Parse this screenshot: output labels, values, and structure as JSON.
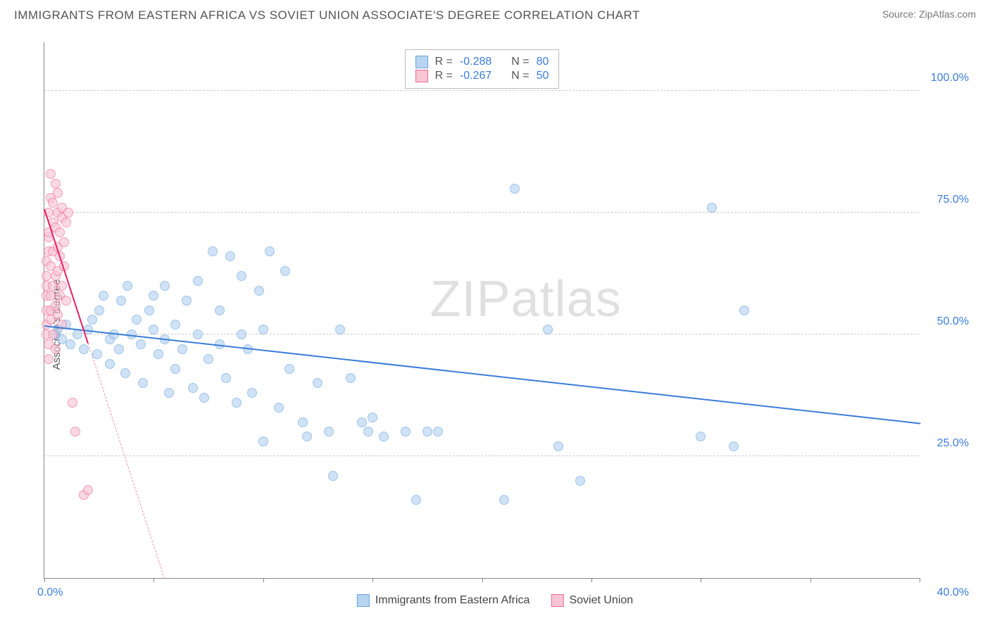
{
  "title": "IMMIGRANTS FROM EASTERN AFRICA VS SOVIET UNION ASSOCIATE'S DEGREE CORRELATION CHART",
  "source_label": "Source: ",
  "source_name": "ZipAtlas.com",
  "watermark": {
    "zip": "ZIP",
    "atlas": "atlas"
  },
  "chart": {
    "type": "scatter",
    "ylabel": "Associate's Degree",
    "xlim": [
      0,
      40
    ],
    "ylim": [
      0,
      110
    ],
    "x_ticks": [
      0,
      5,
      10,
      15,
      20,
      25,
      30,
      35,
      40
    ],
    "y_gridlines": [
      25,
      50,
      75,
      100
    ],
    "x_label_min": "0.0%",
    "x_label_max": "40.0%",
    "y_tick_labels": {
      "25": "25.0%",
      "50": "50.0%",
      "75": "75.0%",
      "100": "100.0%"
    },
    "background_color": "#ffffff",
    "grid_color": "#cccccc",
    "axis_color": "#888888",
    "tick_label_color": "#3b7dd8",
    "marker_radius": 7,
    "marker_stroke_width": 1.5,
    "series": [
      {
        "name": "Immigrants from Eastern Africa",
        "fill": "#b8d4f0",
        "stroke": "#6aa5e0",
        "fill_opacity": 0.65,
        "regression": {
          "y_at_x0": 52,
          "y_at_xmax": 32,
          "color": "#3b7dd8",
          "width": 2,
          "style": "solid"
        },
        "R": -0.288,
        "N": 80,
        "points": [
          [
            0.5,
            50
          ],
          [
            0.6,
            51
          ],
          [
            0.8,
            49
          ],
          [
            1.0,
            52
          ],
          [
            1.2,
            48
          ],
          [
            1.5,
            50
          ],
          [
            1.8,
            47
          ],
          [
            2.0,
            51
          ],
          [
            2.2,
            53
          ],
          [
            2.4,
            46
          ],
          [
            2.5,
            55
          ],
          [
            2.7,
            58
          ],
          [
            3.0,
            49
          ],
          [
            3.0,
            44
          ],
          [
            3.2,
            50
          ],
          [
            3.4,
            47
          ],
          [
            3.5,
            57
          ],
          [
            3.7,
            42
          ],
          [
            3.8,
            60
          ],
          [
            4.0,
            50
          ],
          [
            4.2,
            53
          ],
          [
            4.4,
            48
          ],
          [
            4.5,
            40
          ],
          [
            4.8,
            55
          ],
          [
            5.0,
            51
          ],
          [
            5.0,
            58
          ],
          [
            5.2,
            46
          ],
          [
            5.5,
            49
          ],
          [
            5.5,
            60
          ],
          [
            5.7,
            38
          ],
          [
            6.0,
            52
          ],
          [
            6.0,
            43
          ],
          [
            6.3,
            47
          ],
          [
            6.5,
            57
          ],
          [
            6.8,
            39
          ],
          [
            7.0,
            50
          ],
          [
            7.0,
            61
          ],
          [
            7.3,
            37
          ],
          [
            7.5,
            45
          ],
          [
            7.7,
            67
          ],
          [
            8.0,
            48
          ],
          [
            8.0,
            55
          ],
          [
            8.3,
            41
          ],
          [
            8.5,
            66
          ],
          [
            8.8,
            36
          ],
          [
            9.0,
            50
          ],
          [
            9.0,
            62
          ],
          [
            9.3,
            47
          ],
          [
            9.5,
            38
          ],
          [
            9.8,
            59
          ],
          [
            10.0,
            51
          ],
          [
            10.0,
            28
          ],
          [
            10.3,
            67
          ],
          [
            10.7,
            35
          ],
          [
            11.0,
            63
          ],
          [
            11.2,
            43
          ],
          [
            11.8,
            32
          ],
          [
            12.0,
            29
          ],
          [
            12.5,
            40
          ],
          [
            13.0,
            30
          ],
          [
            13.2,
            21
          ],
          [
            13.5,
            51
          ],
          [
            14.0,
            41
          ],
          [
            14.5,
            32
          ],
          [
            14.8,
            30
          ],
          [
            15.0,
            33
          ],
          [
            15.5,
            29
          ],
          [
            16.5,
            30
          ],
          [
            17.0,
            16
          ],
          [
            17.5,
            30
          ],
          [
            18.0,
            30
          ],
          [
            21.0,
            16
          ],
          [
            21.5,
            80
          ],
          [
            23.0,
            51
          ],
          [
            23.5,
            27
          ],
          [
            24.5,
            20
          ],
          [
            30.0,
            29
          ],
          [
            30.5,
            76
          ],
          [
            31.5,
            27
          ],
          [
            32.0,
            55
          ]
        ]
      },
      {
        "name": "Soviet Union",
        "fill": "#f8c5d5",
        "stroke": "#ec6a99",
        "fill_opacity": 0.65,
        "regression": {
          "y_at_x0": 76,
          "slope_to_zero_at_x": 5.5,
          "color": "#e91e63",
          "width": 2,
          "style": "solid_then_dash"
        },
        "R": -0.267,
        "N": 50,
        "points": [
          [
            0.1,
            55
          ],
          [
            0.1,
            58
          ],
          [
            0.1,
            60
          ],
          [
            0.1,
            62
          ],
          [
            0.1,
            50
          ],
          [
            0.1,
            52
          ],
          [
            0.1,
            65
          ],
          [
            0.2,
            70
          ],
          [
            0.2,
            45
          ],
          [
            0.2,
            75
          ],
          [
            0.2,
            48
          ],
          [
            0.2,
            67
          ],
          [
            0.2,
            71
          ],
          [
            0.3,
            55
          ],
          [
            0.3,
            78
          ],
          [
            0.3,
            58
          ],
          [
            0.3,
            83
          ],
          [
            0.3,
            53
          ],
          [
            0.3,
            64
          ],
          [
            0.4,
            73
          ],
          [
            0.4,
            60
          ],
          [
            0.4,
            50
          ],
          [
            0.4,
            77
          ],
          [
            0.4,
            67
          ],
          [
            0.5,
            62
          ],
          [
            0.5,
            81
          ],
          [
            0.5,
            56
          ],
          [
            0.5,
            72
          ],
          [
            0.5,
            47
          ],
          [
            0.6,
            68
          ],
          [
            0.6,
            75
          ],
          [
            0.6,
            54
          ],
          [
            0.6,
            79
          ],
          [
            0.6,
            63
          ],
          [
            0.7,
            58
          ],
          [
            0.7,
            66
          ],
          [
            0.7,
            71
          ],
          [
            0.8,
            74
          ],
          [
            0.8,
            60
          ],
          [
            0.8,
            76
          ],
          [
            0.8,
            52
          ],
          [
            0.9,
            64
          ],
          [
            0.9,
            69
          ],
          [
            1.0,
            73
          ],
          [
            1.0,
            57
          ],
          [
            1.1,
            75
          ],
          [
            1.3,
            36
          ],
          [
            1.4,
            30
          ],
          [
            1.8,
            17
          ],
          [
            2.0,
            18
          ]
        ]
      }
    ],
    "legend_top": {
      "rows": [
        {
          "sw_fill": "#b8d4f0",
          "sw_stroke": "#6aa5e0",
          "r_label": "R =",
          "r_value": "-0.288",
          "n_label": "N =",
          "n_value": "80"
        },
        {
          "sw_fill": "#f8c5d5",
          "sw_stroke": "#ec6a99",
          "r_label": "R =",
          "r_value": "-0.267",
          "n_label": "N =",
          "n_value": "50"
        }
      ]
    },
    "legend_bottom": [
      {
        "sw_fill": "#b8d4f0",
        "sw_stroke": "#6aa5e0",
        "label": "Immigrants from Eastern Africa"
      },
      {
        "sw_fill": "#f8c5d5",
        "sw_stroke": "#ec6a99",
        "label": "Soviet Union"
      }
    ]
  }
}
